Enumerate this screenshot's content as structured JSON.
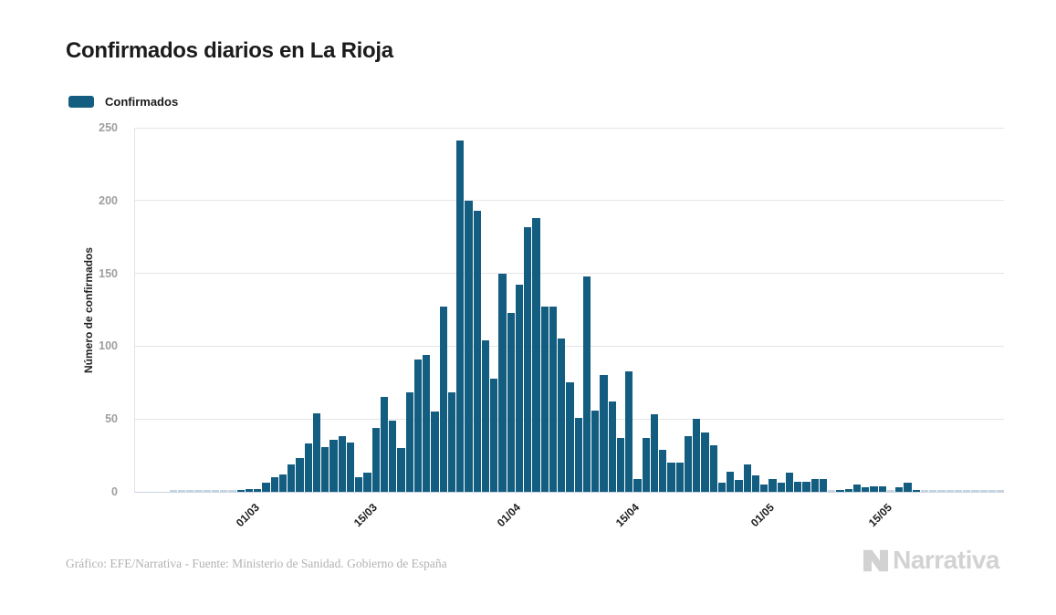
{
  "title": "Confirmados diarios en La Rioja",
  "legend": {
    "label": "Confirmados",
    "swatch_color": "#135d80"
  },
  "footer": {
    "credit": "Gráfico: EFE/Narrativa - Fuente: Ministerio de Sanidad. Gobierno de España",
    "brand": "Narrativa"
  },
  "colors": {
    "bar": "#135d80",
    "zero_bar": "#c5d4e0",
    "grid": "#e6e6e6",
    "baseline": "#ccd5e0",
    "ytick_label": "#9e9e9e",
    "xtick_label": "#1b1b1b",
    "logo": "#d2d2d2"
  },
  "chart_data": {
    "type": "bar",
    "title": "Confirmados diarios en La Rioja",
    "series_name": "Confirmados",
    "xlabel": "",
    "ylabel": "Número de confirmados",
    "ylim": [
      0,
      250
    ],
    "yticks": [
      0,
      50,
      100,
      150,
      200,
      250
    ],
    "xticks": [
      "01/03",
      "15/03",
      "01/04",
      "15/04",
      "01/05",
      "15/05"
    ],
    "grid": "horizontal",
    "legend_position": "top-left",
    "categories": [
      "21/02",
      "22/02",
      "23/02",
      "24/02",
      "25/02",
      "26/02",
      "27/02",
      "28/02",
      "29/02",
      "01/03",
      "02/03",
      "03/03",
      "04/03",
      "05/03",
      "06/03",
      "07/03",
      "08/03",
      "09/03",
      "10/03",
      "11/03",
      "12/03",
      "13/03",
      "14/03",
      "15/03",
      "16/03",
      "17/03",
      "18/03",
      "19/03",
      "20/03",
      "21/03",
      "22/03",
      "23/03",
      "24/03",
      "25/03",
      "26/03",
      "27/03",
      "28/03",
      "29/03",
      "30/03",
      "31/03",
      "01/04",
      "02/04",
      "03/04",
      "04/04",
      "05/04",
      "06/04",
      "07/04",
      "08/04",
      "09/04",
      "10/04",
      "11/04",
      "12/04",
      "13/04",
      "14/04",
      "15/04",
      "16/04",
      "17/04",
      "18/04",
      "19/04",
      "20/04",
      "21/04",
      "22/04",
      "23/04",
      "24/04",
      "25/04",
      "26/04",
      "27/04",
      "28/04",
      "29/04",
      "30/04",
      "01/05",
      "02/05",
      "03/05",
      "04/05",
      "05/05",
      "06/05",
      "07/05",
      "08/05",
      "09/05",
      "10/05",
      "11/05",
      "12/05",
      "13/05",
      "14/05",
      "15/05",
      "16/05",
      "17/05",
      "18/05",
      "19/05",
      "20/05",
      "21/05",
      "22/05",
      "23/05",
      "24/05",
      "25/05",
      "26/05",
      "27/05",
      "28/05",
      "29/05"
    ],
    "values": [
      0,
      0,
      0,
      0,
      0,
      0,
      0,
      0,
      1,
      2,
      2,
      6,
      10,
      12,
      19,
      23,
      33,
      54,
      31,
      36,
      38,
      34,
      10,
      13,
      44,
      65,
      49,
      30,
      68,
      91,
      94,
      55,
      127,
      68,
      241,
      200,
      193,
      104,
      78,
      150,
      123,
      142,
      182,
      188,
      127,
      127,
      105,
      75,
      51,
      148,
      56,
      80,
      62,
      37,
      83,
      9,
      37,
      53,
      29,
      20,
      20,
      38,
      50,
      41,
      32,
      6,
      14,
      8,
      19,
      11,
      5,
      9,
      6,
      13,
      7,
      7,
      9,
      9,
      0,
      1,
      2,
      5,
      3,
      4,
      4,
      0,
      3,
      6,
      1,
      0,
      0,
      0,
      0,
      0,
      0,
      0,
      0,
      0,
      0
    ]
  }
}
